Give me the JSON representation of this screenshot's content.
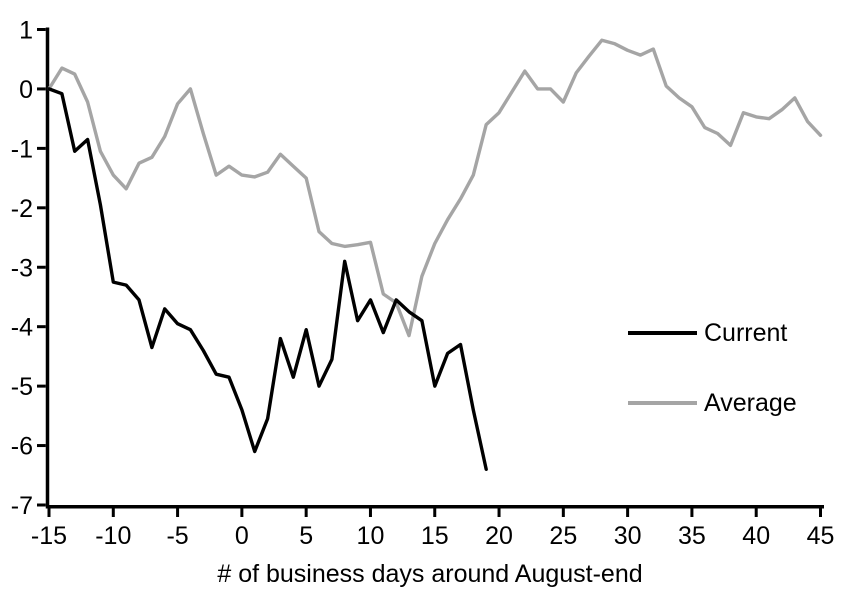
{
  "chart_data": {
    "type": "line",
    "title": "",
    "xlabel": "# of business days around August-end",
    "ylabel": "",
    "xlim": [
      -15,
      45
    ],
    "ylim": [
      -7,
      1
    ],
    "x_ticks": [
      -15,
      -10,
      -5,
      0,
      5,
      10,
      15,
      20,
      25,
      30,
      35,
      40,
      45
    ],
    "y_ticks": [
      1,
      0,
      -1,
      -2,
      -3,
      -4,
      -5,
      -6,
      -7
    ],
    "grid": "off",
    "legend_position": "inside-right-middle",
    "axis_color": "#000000",
    "series": [
      {
        "name": "Current",
        "color": "#000000",
        "x_start": -15,
        "x_step": 1,
        "values": [
          0.0,
          -0.08,
          -1.05,
          -0.85,
          -1.95,
          -3.25,
          -3.3,
          -3.55,
          -4.35,
          -3.7,
          -3.95,
          -4.05,
          -4.4,
          -4.8,
          -4.85,
          -5.4,
          -6.1,
          -5.55,
          -4.2,
          -4.85,
          -4.05,
          -5.0,
          -4.55,
          -2.9,
          -3.9,
          -3.55,
          -4.1,
          -3.55,
          -3.75,
          -3.9,
          -5.0,
          -4.45,
          -4.3,
          -5.4,
          -6.4
        ]
      },
      {
        "name": "Average",
        "color": "#a5a5a5",
        "x_start": -15,
        "x_step": 1,
        "values": [
          0.0,
          0.35,
          0.25,
          -0.22,
          -1.05,
          -1.45,
          -1.68,
          -1.25,
          -1.15,
          -0.8,
          -0.25,
          0.0,
          -0.75,
          -1.45,
          -1.3,
          -1.45,
          -1.48,
          -1.4,
          -1.1,
          -1.3,
          -1.5,
          -2.4,
          -2.6,
          -2.65,
          -2.62,
          -2.58,
          -3.45,
          -3.6,
          -4.15,
          -3.15,
          -2.6,
          -2.2,
          -1.85,
          -1.45,
          -0.6,
          -0.4,
          -0.05,
          0.3,
          0.0,
          0.0,
          -0.22,
          0.27,
          0.55,
          0.82,
          0.76,
          0.65,
          0.57,
          0.67,
          0.05,
          -0.15,
          -0.3,
          -0.65,
          -0.75,
          -0.95,
          -0.4,
          -0.47,
          -0.5,
          -0.35,
          -0.15,
          -0.55,
          -0.78
        ]
      }
    ]
  }
}
